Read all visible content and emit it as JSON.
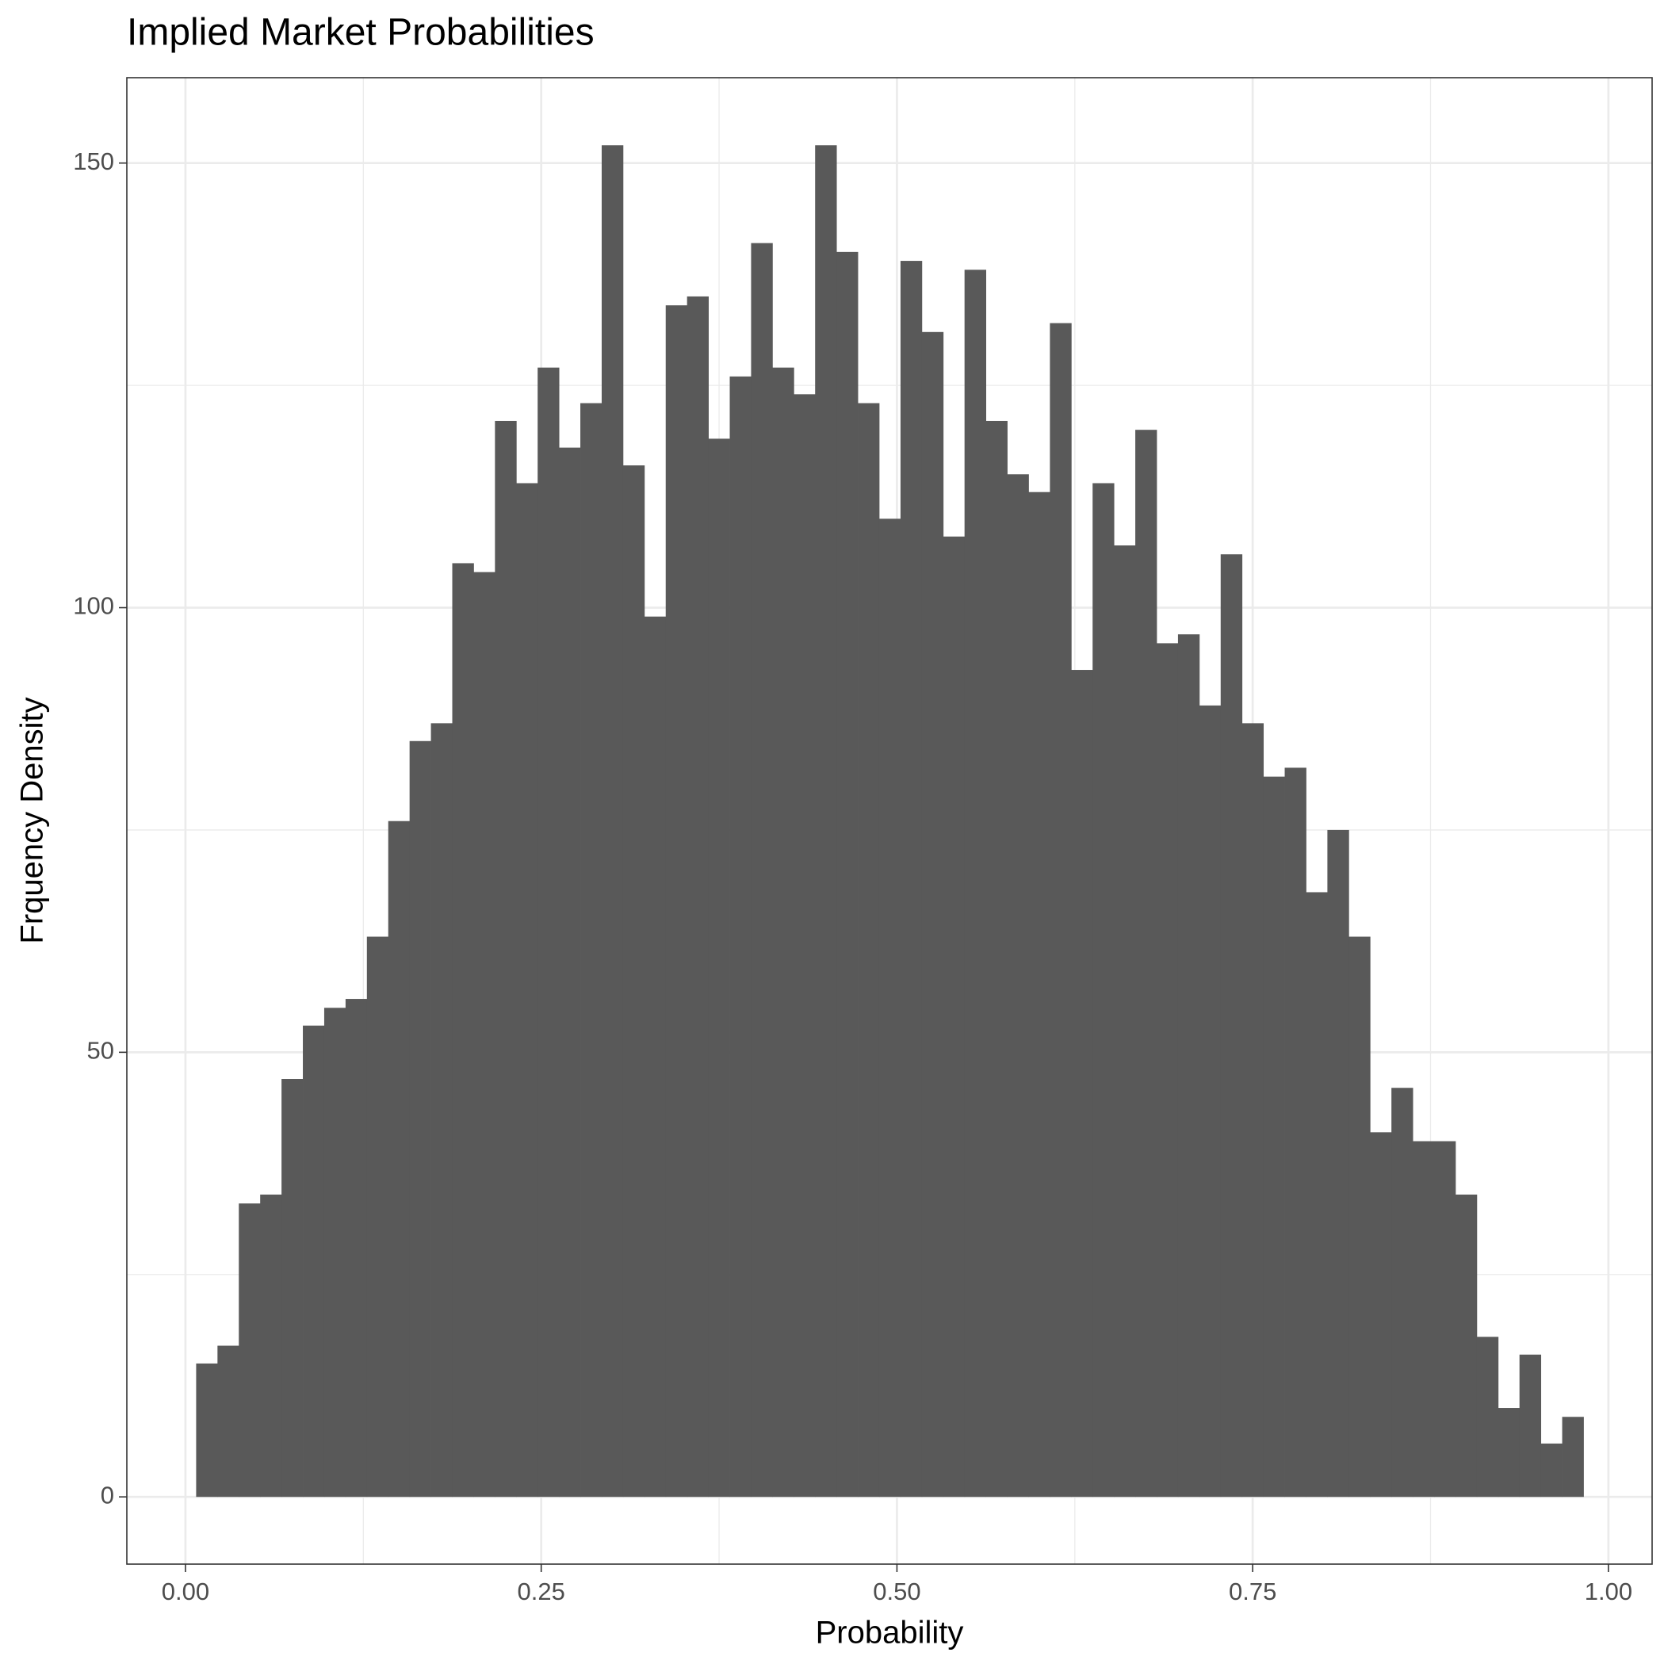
{
  "chart_data": {
    "type": "histogram",
    "title": "Implied Market Probabilities",
    "x_label": "Probability",
    "y_label": "Frquency Density",
    "bins": [
      0.0075,
      0.0225,
      0.0375,
      0.0525,
      0.0675,
      0.0825,
      0.0975,
      0.1125,
      0.1275,
      0.1425,
      0.1575,
      0.1725,
      0.1875,
      0.2025,
      0.2175,
      0.2325,
      0.2475,
      0.2625,
      0.2775,
      0.2925,
      0.3075,
      0.3225,
      0.3375,
      0.3525,
      0.3675,
      0.3825,
      0.3975,
      0.4125,
      0.4275,
      0.4425,
      0.4575,
      0.4725,
      0.4875,
      0.5025,
      0.5175,
      0.5325,
      0.5475,
      0.5625,
      0.5775,
      0.5925,
      0.6075,
      0.6225,
      0.6375,
      0.6525,
      0.6675,
      0.6825,
      0.6975,
      0.7125,
      0.7275,
      0.7425,
      0.7575,
      0.7725,
      0.7875,
      0.8025,
      0.8175,
      0.8325,
      0.8475,
      0.8625,
      0.8775,
      0.8925,
      0.9075,
      0.9225,
      0.9375,
      0.9525,
      0.9675,
      0.9825
    ],
    "values": [
      15,
      17,
      33,
      34,
      47,
      53,
      55,
      56,
      63,
      76,
      85,
      87,
      105,
      104,
      121,
      114,
      127,
      118,
      123,
      152,
      116,
      99,
      134,
      135,
      119,
      126,
      141,
      127,
      124,
      152,
      140,
      123,
      110,
      139,
      131,
      108,
      138,
      121,
      115,
      113,
      132,
      93,
      114,
      107,
      120,
      96,
      97,
      89,
      106,
      87,
      81,
      82,
      68,
      75,
      63,
      41,
      46,
      40,
      40,
      34,
      18,
      10,
      16,
      6,
      9
    ],
    "color": "#595959",
    "xlim": [
      -0.0412,
      1.0307
    ],
    "ylim": [
      -7.56,
      159.6
    ],
    "xticks": [
      {
        "value": 0,
        "label": "0.00"
      },
      {
        "value": 0.25,
        "label": "0.25"
      },
      {
        "value": 0.5,
        "label": "0.50"
      },
      {
        "value": 0.75,
        "label": "0.75"
      },
      {
        "value": 1,
        "label": "1.00"
      }
    ],
    "yticks": [
      0,
      50,
      100,
      150
    ],
    "grid": true
  }
}
